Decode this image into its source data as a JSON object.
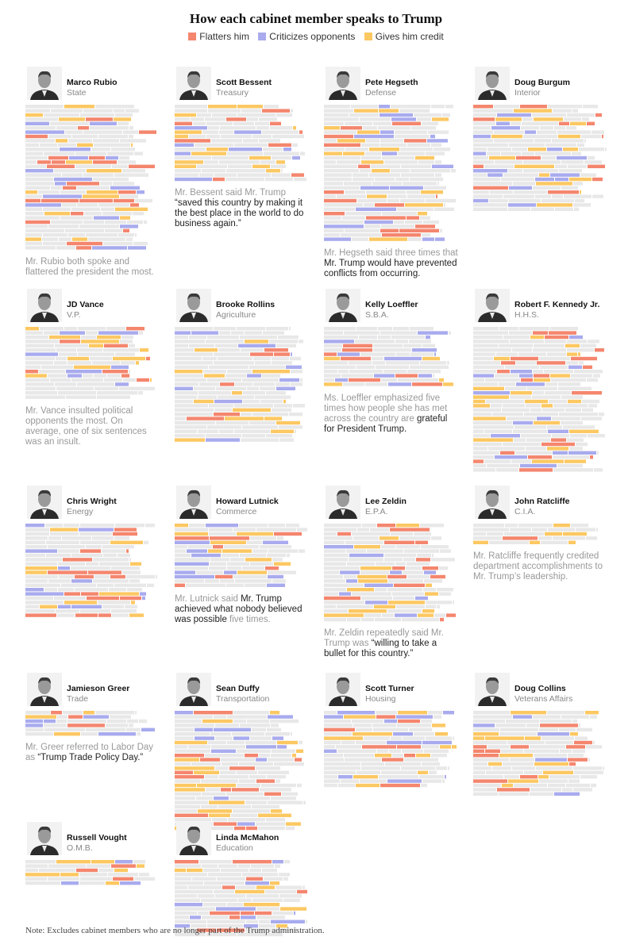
{
  "title": "How each cabinet member speaks to Trump",
  "legend": [
    {
      "label": "Flatters him",
      "color": "#f4866e"
    },
    {
      "label": "Criticizes opponents",
      "color": "#a9abee"
    },
    {
      "label": "Gives him credit",
      "color": "#fcc862"
    }
  ],
  "colors": {
    "neutral": "#e8e8e8",
    "flatter": "#f4866e",
    "criticize": "#a9abee",
    "credit": "#fcc862"
  },
  "chart_data": {
    "type": "table",
    "description_units": "Each panel is one cabinet member; each horizontal segment is one spoken sentence, colored by category.",
    "categories": [
      "Flatters him",
      "Criticizes opponents",
      "Gives him credit"
    ],
    "members": [
      {
        "name": "Marco Rubio",
        "role": "State",
        "rows": 34,
        "caption": [
          {
            "t": "Mr. Rubio both spoke and flattered the president the most.",
            "h": false
          }
        ]
      },
      {
        "name": "Scott Bessent",
        "role": "Treasury",
        "rows": 18,
        "caption": [
          {
            "t": "Mr. Bessent said Mr. Trump ",
            "h": false
          },
          {
            "t": "“saved this country by making it the best place in the world to do business again.”",
            "h": true
          }
        ]
      },
      {
        "name": "Pete Hegseth",
        "role": "Defense",
        "rows": 32,
        "caption": [
          {
            "t": "Mr. Hegseth said three times that ",
            "h": false
          },
          {
            "t": "Mr. Trump would have prevented conflicts from occurring.",
            "h": true
          }
        ]
      },
      {
        "name": "Doug Burgum",
        "role": "Interior",
        "rows": 25,
        "caption": []
      },
      {
        "name": "JD Vance",
        "role": "V.P.",
        "rows": 17,
        "caption": [
          {
            "t": "Mr. Vance insulted political opponents the most. On average, one of six sentences was an insult.",
            "h": false
          }
        ]
      },
      {
        "name": "Brooke Rollins",
        "role": "Agriculture",
        "rows": 27,
        "caption": []
      },
      {
        "name": "Kelly Loeffler",
        "role": "S.B.A.",
        "rows": 14,
        "caption": [
          {
            "t": "Ms. Loeffler emphasized five times how people she has met across the country are ",
            "h": false
          },
          {
            "t": "grateful for President Trump.",
            "h": true
          }
        ]
      },
      {
        "name": "Robert F. Kennedy Jr.",
        "role": "H.H.S.",
        "rows": 34,
        "caption": []
      },
      {
        "name": "Chris Wright",
        "role": "Energy",
        "rows": 22,
        "caption": []
      },
      {
        "name": "Howard Lutnick",
        "role": "Commerce",
        "rows": 15,
        "caption": [
          {
            "t": "Mr. Lutnick said ",
            "h": false
          },
          {
            "t": "Mr. Trump achieved what nobody believed was possible",
            "h": true
          },
          {
            "t": " five times.",
            "h": false
          }
        ]
      },
      {
        "name": "Lee Zeldin",
        "role": "E.P.A.",
        "rows": 23,
        "caption": [
          {
            "t": "Mr. Zeldin repeatedly said Mr. Trump was ",
            "h": false
          },
          {
            "t": "“willing to take a bullet for this country.”",
            "h": true
          }
        ]
      },
      {
        "name": "John Ratcliffe",
        "role": "C.I.A.",
        "rows": 5,
        "caption": [
          {
            "t": "Mr. Ratcliffe frequently credited department accomplishments to Mr. Trump’s leadership.",
            "h": false
          }
        ]
      },
      {
        "name": "Jamieson Greer",
        "role": "Trade",
        "rows": 6,
        "caption": [
          {
            "t": "Mr. Greer referred to Labor Day as ",
            "h": false
          },
          {
            "t": "“Trump Trade Policy Day.”",
            "h": true
          }
        ]
      },
      {
        "name": "Sean Duffy",
        "role": "Transportation",
        "rows": 28,
        "caption": []
      },
      {
        "name": "Scott Turner",
        "role": "Housing",
        "rows": 18,
        "caption": []
      },
      {
        "name": "Doug Collins",
        "role": "Veterans Affairs",
        "rows": 20,
        "caption": []
      },
      {
        "name": "Russell Vought",
        "role": "O.M.B.",
        "rows": 6,
        "caption": []
      },
      {
        "name": "Linda McMahon",
        "role": "Education",
        "rows": 18,
        "caption": []
      }
    ]
  },
  "note": "Note: Excludes cabinet members who are no longer part of the Trump administration."
}
